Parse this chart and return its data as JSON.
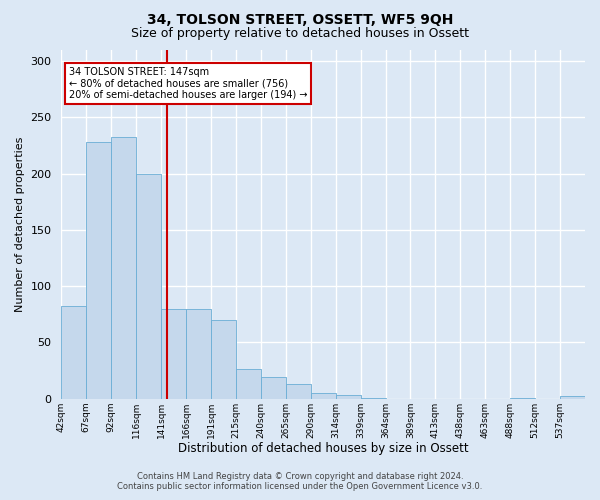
{
  "title": "34, TOLSON STREET, OSSETT, WF5 9QH",
  "subtitle": "Size of property relative to detached houses in Ossett",
  "xlabel": "Distribution of detached houses by size in Ossett",
  "ylabel": "Number of detached properties",
  "tick_labels": [
    "42sqm",
    "67sqm",
    "92sqm",
    "116sqm",
    "141sqm",
    "166sqm",
    "191sqm",
    "215sqm",
    "240sqm",
    "265sqm",
    "290sqm",
    "314sqm",
    "339sqm",
    "364sqm",
    "389sqm",
    "413sqm",
    "438sqm",
    "463sqm",
    "488sqm",
    "512sqm",
    "537sqm"
  ],
  "bar_values": [
    82,
    228,
    233,
    200,
    80,
    80,
    70,
    26,
    19,
    13,
    5,
    3,
    1,
    0,
    0,
    0,
    0,
    0,
    1,
    0,
    2
  ],
  "bar_color": "#c5d8ec",
  "bar_edgecolor": "#6aadd5",
  "red_line_after_bar": 4,
  "red_line_color": "#cc0000",
  "annotation_title": "34 TOLSON STREET: 147sqm",
  "annotation_line1": "← 80% of detached houses are smaller (756)",
  "annotation_line2": "20% of semi-detached houses are larger (194) →",
  "annotation_box_facecolor": "#ffffff",
  "annotation_box_edgecolor": "#cc0000",
  "ylim": [
    0,
    310
  ],
  "background_color": "#dce8f5",
  "plot_background_color": "#dce8f5",
  "grid_color": "#ffffff",
  "title_fontsize": 10,
  "subtitle_fontsize": 9,
  "xlabel_fontsize": 8.5,
  "ylabel_fontsize": 8,
  "tick_fontsize": 6.5,
  "footer_fontsize": 6,
  "footer1": "Contains HM Land Registry data © Crown copyright and database right 2024.",
  "footer2": "Contains public sector information licensed under the Open Government Licence v3.0."
}
